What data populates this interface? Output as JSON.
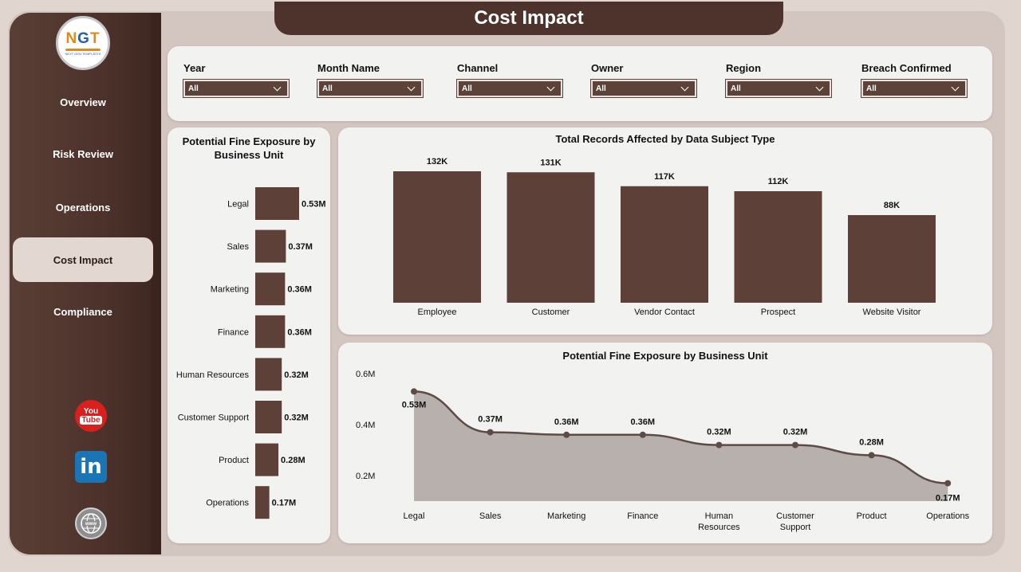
{
  "page_title": "Cost Impact",
  "logo": {
    "main_n": "N",
    "main_g": "G",
    "main_t": "T",
    "sub": "NEXT GEN TEMPLATES"
  },
  "nav": [
    {
      "label": "Overview"
    },
    {
      "label": "Risk Review"
    },
    {
      "label": "Operations"
    },
    {
      "label": "Cost Impact",
      "active": true
    },
    {
      "label": "Compliance"
    }
  ],
  "social": {
    "youtube_top": "You",
    "youtube_bottom": "Tube",
    "linkedin": "in"
  },
  "filters": [
    {
      "label": "Year",
      "value": "All"
    },
    {
      "label": "Month Name",
      "value": "All"
    },
    {
      "label": "Channel",
      "value": "All"
    },
    {
      "label": "Owner",
      "value": "All"
    },
    {
      "label": "Region",
      "value": "All"
    },
    {
      "label": "Breach Confirmed",
      "value": "All"
    }
  ],
  "colors": {
    "bar": "#5d4037",
    "area": "#b7b0ad",
    "line": "#5d4b45",
    "sidebar": "#4d332c"
  },
  "chart_data": [
    {
      "type": "bar",
      "orientation": "horizontal",
      "title": "Potential Fine Exposure by Business Unit",
      "categories": [
        "Legal",
        "Sales",
        "Marketing",
        "Finance",
        "Human Resources",
        "Customer Support",
        "Product",
        "Operations"
      ],
      "values": [
        0.53,
        0.37,
        0.36,
        0.36,
        0.32,
        0.32,
        0.28,
        0.17
      ],
      "data_labels": [
        "0.53M",
        "0.37M",
        "0.36M",
        "0.36M",
        "0.32M",
        "0.32M",
        "0.28M",
        "0.17M"
      ],
      "unit": "M"
    },
    {
      "type": "bar",
      "title": "Total Records Affected by Data Subject Type",
      "categories": [
        "Employee",
        "Customer",
        "Vendor Contact",
        "Prospect",
        "Website Visitor"
      ],
      "values": [
        132,
        131,
        117,
        112,
        88
      ],
      "data_labels": [
        "132K",
        "131K",
        "117K",
        "112K",
        "88K"
      ],
      "unit": "K"
    },
    {
      "type": "area",
      "title": "Potential Fine Exposure by Business Unit",
      "categories": [
        "Legal",
        "Sales",
        "Marketing",
        "Finance",
        "Human Resources",
        "Customer Support",
        "Product",
        "Operations"
      ],
      "values": [
        0.53,
        0.37,
        0.36,
        0.36,
        0.32,
        0.32,
        0.28,
        0.17
      ],
      "data_labels": [
        "0.53M",
        "0.37M",
        "0.36M",
        "0.36M",
        "0.32M",
        "0.32M",
        "0.28M",
        "0.17M"
      ],
      "y_ticks": [
        "0.2M",
        "0.4M",
        "0.6M"
      ],
      "y_tick_values": [
        0.2,
        0.4,
        0.6
      ],
      "ylim": [
        0.1,
        0.6
      ]
    }
  ]
}
